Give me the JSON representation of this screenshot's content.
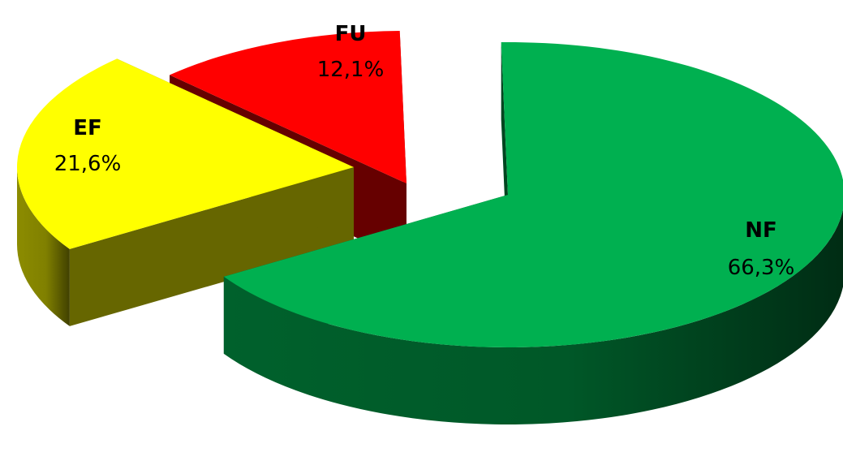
{
  "chart_data": {
    "type": "pie",
    "title": "",
    "style": "3d-exploded",
    "legend": "none",
    "slices": [
      {
        "label": "NF",
        "value": 66.3,
        "value_label": "66,3%",
        "color": "#00b050",
        "exploded": false
      },
      {
        "label": "EF",
        "value": 21.6,
        "value_label": "21,6%",
        "color": "#ffff00",
        "exploded": true
      },
      {
        "label": "FU",
        "value": 12.1,
        "value_label": "12,1%",
        "color": "#ff0000",
        "exploded": true
      }
    ]
  }
}
